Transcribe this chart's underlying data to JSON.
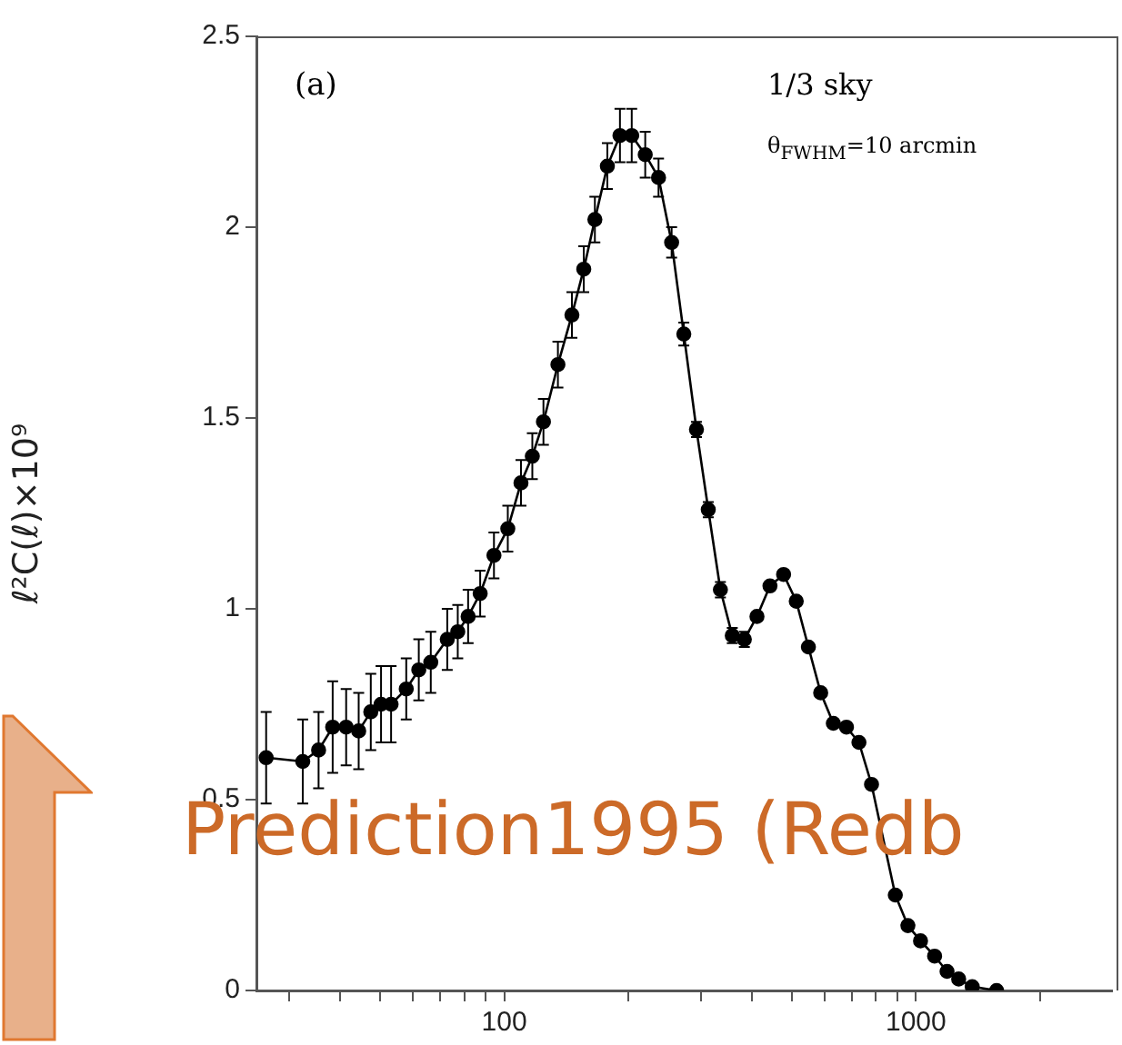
{
  "chart_data": {
    "type": "line",
    "ylabel": "ℓ²C(ℓ)×10⁹",
    "log": "x",
    "xlim": [
      25,
      3000
    ],
    "xticks": [
      {
        "value": 30,
        "label": null
      },
      {
        "value": 40,
        "label": null
      },
      {
        "value": 50,
        "label": null
      },
      {
        "value": 60,
        "label": null
      },
      {
        "value": 70,
        "label": null
      },
      {
        "value": 80,
        "label": null
      },
      {
        "value": 90,
        "label": null
      },
      100,
      {
        "value": 200,
        "label": null
      },
      {
        "value": 300,
        "label": null
      },
      {
        "value": 400,
        "label": null
      },
      {
        "value": 500,
        "label": null
      },
      {
        "value": 600,
        "label": null
      },
      {
        "value": 700,
        "label": null
      },
      {
        "value": 800,
        "label": null
      },
      {
        "value": 900,
        "label": null
      },
      1000,
      {
        "value": 2000,
        "label": null
      }
    ],
    "ylim": [
      0,
      2.5
    ],
    "yticks": [
      0,
      0.5,
      1,
      1.5,
      2,
      2.5
    ],
    "grid": false,
    "legend": false,
    "marker": "circle",
    "line_style": "solid",
    "series": [
      {
        "color": "#000000",
        "x": [
          26.4,
          32.4,
          35.4,
          38.3,
          41.3,
          44.3,
          47.4,
          50.2,
          53.1,
          57.8,
          62,
          66.3,
          72.7,
          77.1,
          81.7,
          87.4,
          94.4,
          102,
          109.8,
          117,
          124.5,
          135,
          146,
          156,
          166,
          178,
          191,
          204,
          220,
          237,
          255,
          273,
          293,
          313,
          335,
          358,
          383,
          411,
          442,
          477,
          512,
          548,
          587,
          630,
          678,
          727,
          780,
          891,
          956,
          1026,
          1110,
          1190,
          1270,
          1370,
          1570
        ],
        "values": [
          0.61,
          0.6,
          0.63,
          0.69,
          0.69,
          0.68,
          0.73,
          0.75,
          0.75,
          0.79,
          0.84,
          0.86,
          0.92,
          0.94,
          0.98,
          1.04,
          1.14,
          1.21,
          1.33,
          1.4,
          1.49,
          1.64,
          1.77,
          1.89,
          2.02,
          2.16,
          2.24,
          2.24,
          2.19,
          2.13,
          1.96,
          1.72,
          1.47,
          1.26,
          1.05,
          0.93,
          0.92,
          0.98,
          1.06,
          1.09,
          1.02,
          0.9,
          0.78,
          0.7,
          0.69,
          0.65,
          0.54,
          0.25,
          0.17,
          0.13,
          0.09,
          0.05,
          0.03,
          0.01,
          0
        ],
        "errors": [
          0.12,
          0.11,
          0.1,
          0.12,
          0.1,
          0.1,
          0.1,
          0.1,
          0.1,
          0.08,
          0.08,
          0.08,
          0.08,
          0.07,
          0.07,
          0.06,
          0.06,
          0.06,
          0.06,
          0.06,
          0.06,
          0.06,
          0.06,
          0.06,
          0.06,
          0.06,
          0.07,
          0.07,
          0.06,
          0.05,
          0.04,
          0.03,
          0.02,
          0.02,
          0.02,
          0.02,
          0.02,
          0.01,
          0.01,
          0.01,
          0.01,
          0.01,
          0.01,
          0.01,
          null,
          null,
          null,
          null,
          null,
          null,
          null,
          null,
          null,
          null,
          null
        ]
      }
    ],
    "annotations": [
      "(a)",
      "1/3 sky",
      "θ$_{FWHM}$=10 arcmin",
      "Prediction1995 (Redb"
    ]
  }
}
